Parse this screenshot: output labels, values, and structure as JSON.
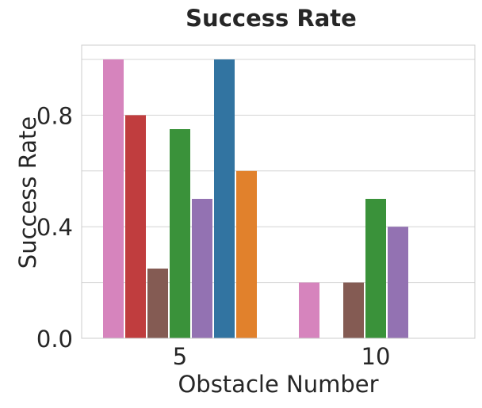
{
  "chart_data": {
    "type": "bar",
    "title": "Success Rate",
    "xlabel": "Obstacle Number",
    "ylabel": "Success Rate",
    "categories": [
      "5",
      "10"
    ],
    "ylim": [
      0,
      1.0
    ],
    "yticks": [
      "0.0",
      "0.4",
      "0.8"
    ],
    "ytick_values": [
      0.0,
      0.4,
      0.8
    ],
    "grid": true,
    "series": [
      {
        "color": "#d684bd",
        "values": [
          1.0,
          0.2
        ]
      },
      {
        "color": "#c03d3e",
        "values": [
          0.8,
          0.0
        ]
      },
      {
        "color": "#845b53",
        "values": [
          0.25,
          0.2
        ]
      },
      {
        "color": "#3a923a",
        "values": [
          0.75,
          0.5
        ]
      },
      {
        "color": "#9372b2",
        "values": [
          0.5,
          0.4
        ]
      },
      {
        "color": "#3274a1",
        "values": [
          1.0,
          0.0
        ]
      },
      {
        "color": "#e1812c",
        "values": [
          0.6,
          0.0
        ]
      }
    ]
  }
}
